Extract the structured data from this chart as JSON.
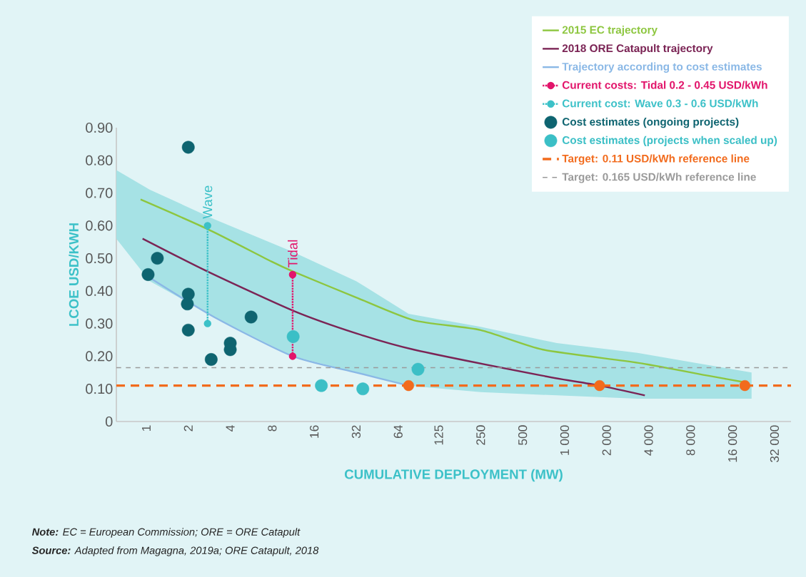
{
  "chart_data": {
    "type": "scatter",
    "xlabel": "CUMULATIVE DEPLOYMENT (MW)",
    "ylabel": "LCOE USD/KWH",
    "log": "x",
    "xlim": [
      0.61,
      42000
    ],
    "ylim": [
      0,
      0.9
    ],
    "xticks": [
      1,
      2,
      4,
      8,
      16,
      32,
      64,
      125,
      250,
      500,
      {
        "value": 1000,
        "label": "1 000"
      },
      {
        "value": 2000,
        "label": "2 000"
      },
      {
        "value": 4000,
        "label": "4 000"
      },
      {
        "value": 8000,
        "label": "8 000"
      },
      {
        "value": 16000,
        "label": "16 000"
      },
      {
        "value": 32000,
        "label": "32 000"
      }
    ],
    "yticks": [
      0,
      {
        "value": 0.1,
        "label": "0.10"
      },
      {
        "value": 0.2,
        "label": "0.20"
      },
      {
        "value": 0.3,
        "label": "0.30"
      },
      {
        "value": 0.4,
        "label": "0.40"
      },
      {
        "value": 0.5,
        "label": "0.50"
      },
      {
        "value": 0.6,
        "label": "0.60"
      },
      {
        "value": 0.7,
        "label": "0.70"
      },
      {
        "value": 0.8,
        "label": "0.80"
      },
      {
        "value": 0.9,
        "label": "0.90"
      }
    ],
    "grid": false,
    "legend": "top right",
    "series": [
      {
        "type": "line",
        "name": "2015 EC trajectory",
        "color": "#8dc63f",
        "marker": "none",
        "line_style": "solid",
        "x": [
          0.91,
          2.73,
          7.9,
          11.2,
          32,
          83,
          250,
          700,
          3330,
          10800,
          19600
        ],
        "values": [
          0.68,
          0.59,
          0.49,
          0.46,
          0.38,
          0.31,
          0.28,
          0.22,
          0.18,
          0.14,
          0.12
        ]
      },
      {
        "type": "line",
        "name": "2018 ORE Catapult trajectory",
        "color": "#7b2455",
        "marker": "none",
        "line_style": "solid",
        "x": [
          0.94,
          2.73,
          11.2,
          32,
          83,
          700,
          1780,
          3760
        ],
        "values": [
          0.56,
          0.46,
          0.34,
          0.27,
          0.22,
          0.14,
          0.11,
          0.08
        ]
      },
      {
        "type": "line",
        "name": "Trajectory according to cost estimates",
        "color": "#8ab8e6",
        "marker": "none",
        "line_style": "solid",
        "x": [
          0.61,
          1.06,
          3.06,
          11.2,
          32,
          76,
          250,
          880,
          3330,
          21900
        ],
        "values": [
          null,
          0.44,
          0.32,
          0.2,
          0.15,
          0.11,
          null,
          null,
          null,
          null
        ],
        "lower": [
          0.56,
          0.43,
          0.32,
          0.2,
          0.15,
          0.11,
          0.09,
          0.08,
          0.07,
          0.07
        ],
        "upper": [
          0.77,
          0.71,
          0.62,
          0.52,
          0.43,
          0.33,
          0.29,
          0.24,
          0.21,
          0.15
        ]
      },
      {
        "type": "line",
        "name": "Current costs: Tidal 0.2 - 0.45 USD/kWh",
        "color": "#e2156b",
        "marker": "circle",
        "line_style": "dotted",
        "x": [
          11.2,
          11.2
        ],
        "values": [
          0.2,
          0.45
        ]
      },
      {
        "type": "line",
        "name": "Current cost: Wave 0.3 - 0.6 USD/kWh",
        "color": "#3cc1c8",
        "marker": "circle",
        "line_style": "dotted",
        "x": [
          2.75,
          2.75
        ],
        "values": [
          0.3,
          0.6
        ]
      },
      {
        "name": "Cost estimates (ongoing projects)",
        "color": "#0e6470",
        "marker": "circle",
        "x": [
          2,
          1.2,
          1.03,
          2,
          1.97,
          2,
          2.92,
          4,
          4,
          5.64
        ],
        "values": [
          0.84,
          0.5,
          0.45,
          0.39,
          0.36,
          0.28,
          0.19,
          0.24,
          0.22,
          0.32
        ]
      },
      {
        "name": "Cost estimates (projects when scaled up)",
        "color": "#3bbfc6",
        "marker": "circle",
        "x": [
          11.3,
          18,
          35.7,
          88.8
        ],
        "values": [
          0.26,
          0.11,
          0.1,
          0.16
        ]
      },
      {
        "color": "#f26b1d",
        "marker": "circle",
        "x": [
          76,
          1780,
          19600
        ],
        "values": [
          0.11,
          0.11,
          0.11
        ]
      }
    ],
    "ref_lines": [
      {
        "axis": "y",
        "value": 0.11,
        "label": "Target: 0.11 USD/kWh reference line",
        "color": "#f26b1d",
        "line_style": "dashed"
      },
      {
        "axis": "y",
        "value": 0.165,
        "label": "Target: 0.165 USD/kWh reference line",
        "color": "#9a9a9a",
        "line_style": "dashed"
      }
    ],
    "annotations": [
      {
        "text": "Wave",
        "x": 2.75,
        "y": 0.6
      },
      {
        "text": "Tidal",
        "x": 11.2,
        "y": 0.45
      },
      "**Note:** EC = European Commission; ORE = ORE Catapult",
      "**Source:** Adapted from Magagna, 2019a; ORE Catapult, 2018"
    ]
  }
}
